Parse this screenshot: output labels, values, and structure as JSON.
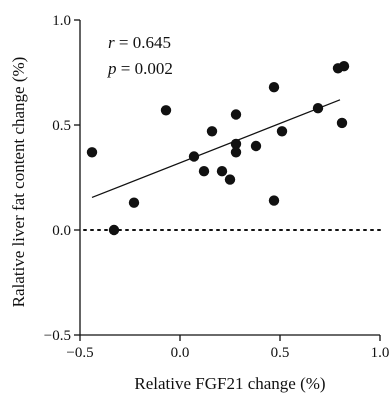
{
  "chart_data": {
    "type": "scatter",
    "title": "",
    "xlabel": "Relative FGF21 change (%)",
    "ylabel": "Ralative liver fat content change (%)",
    "xlim": [
      -0.5,
      1.0
    ],
    "ylim": [
      -0.5,
      1.0
    ],
    "xticks": [
      -0.5,
      0.0,
      0.5,
      1.0
    ],
    "yticks": [
      -0.5,
      0.0,
      0.5,
      1.0
    ],
    "xtick_labels": [
      "−0.5",
      "0.0",
      "0.5",
      "1.0"
    ],
    "ytick_labels": [
      "−0.5",
      "0.0",
      "0.5",
      "1.0"
    ],
    "grid": false,
    "annotations": {
      "r_symbol": "r",
      "r_value": " = 0.645",
      "p_symbol": "p",
      "p_value": " = 0.002"
    },
    "points": [
      {
        "x": -0.44,
        "y": 0.37
      },
      {
        "x": -0.33,
        "y": 0.0
      },
      {
        "x": -0.23,
        "y": 0.13
      },
      {
        "x": -0.07,
        "y": 0.57
      },
      {
        "x": 0.07,
        "y": 0.35
      },
      {
        "x": 0.12,
        "y": 0.28
      },
      {
        "x": 0.16,
        "y": 0.47
      },
      {
        "x": 0.21,
        "y": 0.28
      },
      {
        "x": 0.25,
        "y": 0.24
      },
      {
        "x": 0.28,
        "y": 0.55
      },
      {
        "x": 0.28,
        "y": 0.41
      },
      {
        "x": 0.28,
        "y": 0.37
      },
      {
        "x": 0.38,
        "y": 0.4
      },
      {
        "x": 0.47,
        "y": 0.68
      },
      {
        "x": 0.47,
        "y": 0.14
      },
      {
        "x": 0.51,
        "y": 0.47
      },
      {
        "x": 0.69,
        "y": 0.58
      },
      {
        "x": 0.79,
        "y": 0.77
      },
      {
        "x": 0.81,
        "y": 0.51
      },
      {
        "x": 0.82,
        "y": 0.78
      }
    ],
    "fit_line": {
      "x": [
        -0.44,
        0.8
      ],
      "y": [
        0.155,
        0.62
      ]
    },
    "reference_line": {
      "y": 0.0,
      "style": "dotted"
    }
  }
}
